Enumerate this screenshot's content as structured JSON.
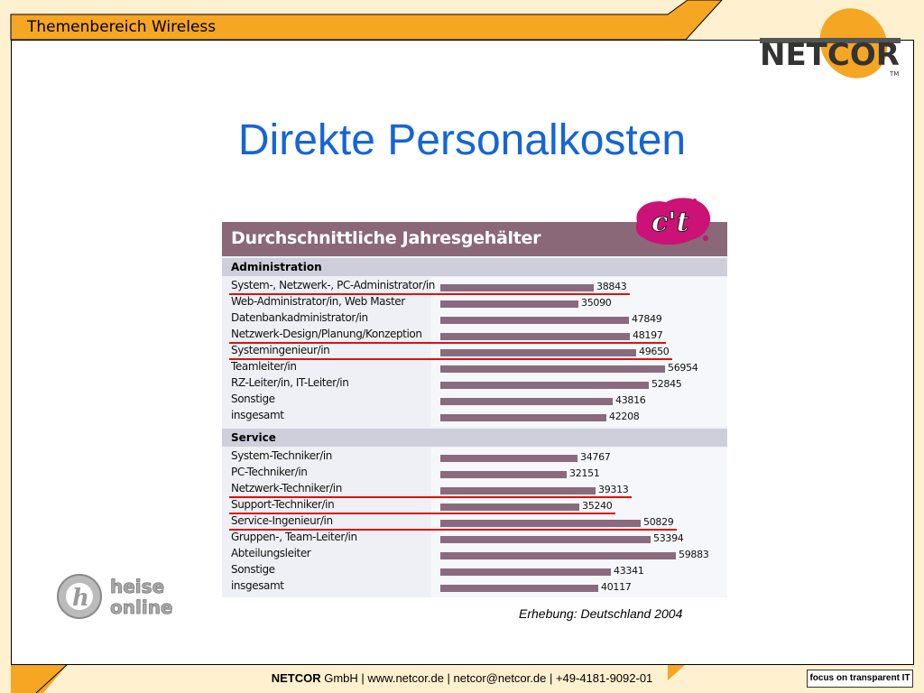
{
  "header": {
    "section_title": "Themenbereich Wireless"
  },
  "logo": {
    "brand": "NETCOR",
    "trademark": "TM"
  },
  "slide": {
    "title": "Direkte Personalkosten",
    "note": "Erhebung: Deutschland 2004"
  },
  "badges": {
    "ct": "c't",
    "heise_line1": "heise",
    "heise_line2": "online"
  },
  "footer": {
    "brand": "NETCOR",
    "rest": " GmbH  | www.netcor.de | netcor@netcor.de | +49-4181-9092-01",
    "badge": "focus on transparent IT"
  },
  "colors": {
    "accent": "#f5a623",
    "title_blue": "#1565d8",
    "bar": "#8a6a7e",
    "highlight": "#dd1111"
  },
  "chart_data": {
    "type": "bar",
    "orientation": "horizontal",
    "title": "Durchschnittliche Jahresgehälter",
    "groups": [
      {
        "name": "Administration",
        "categories": [
          "System-, Netzwerk-, PC-Administrator/in",
          "Web-Administrator/in, Web Master",
          "Datenbankadministrator/in",
          "Netzwerk-Design/Planung/Konzeption",
          "Systemingenieur/in",
          "Teamleiter/in",
          "RZ-Leiter/in, IT-Leiter/in",
          "Sonstige",
          "insgesamt"
        ],
        "values": [
          38843,
          35090,
          47849,
          48197,
          49650,
          56954,
          52845,
          43816,
          42208
        ],
        "highlighted": [
          true,
          false,
          false,
          true,
          true,
          false,
          false,
          false,
          false
        ]
      },
      {
        "name": "Service",
        "categories": [
          "System-Techniker/in",
          "PC-Techniker/in",
          "Netzwerk-Techniker/in",
          "Support-Techniker/in",
          "Service-Ingenieur/in",
          "Gruppen-, Team-Leiter/in",
          "Abteilungsleiter",
          "Sonstige",
          "insgesamt"
        ],
        "values": [
          34767,
          32151,
          39313,
          35240,
          50829,
          53394,
          59883,
          43341,
          40117
        ],
        "highlighted": [
          false,
          false,
          true,
          true,
          true,
          false,
          false,
          false,
          false
        ]
      }
    ]
  }
}
